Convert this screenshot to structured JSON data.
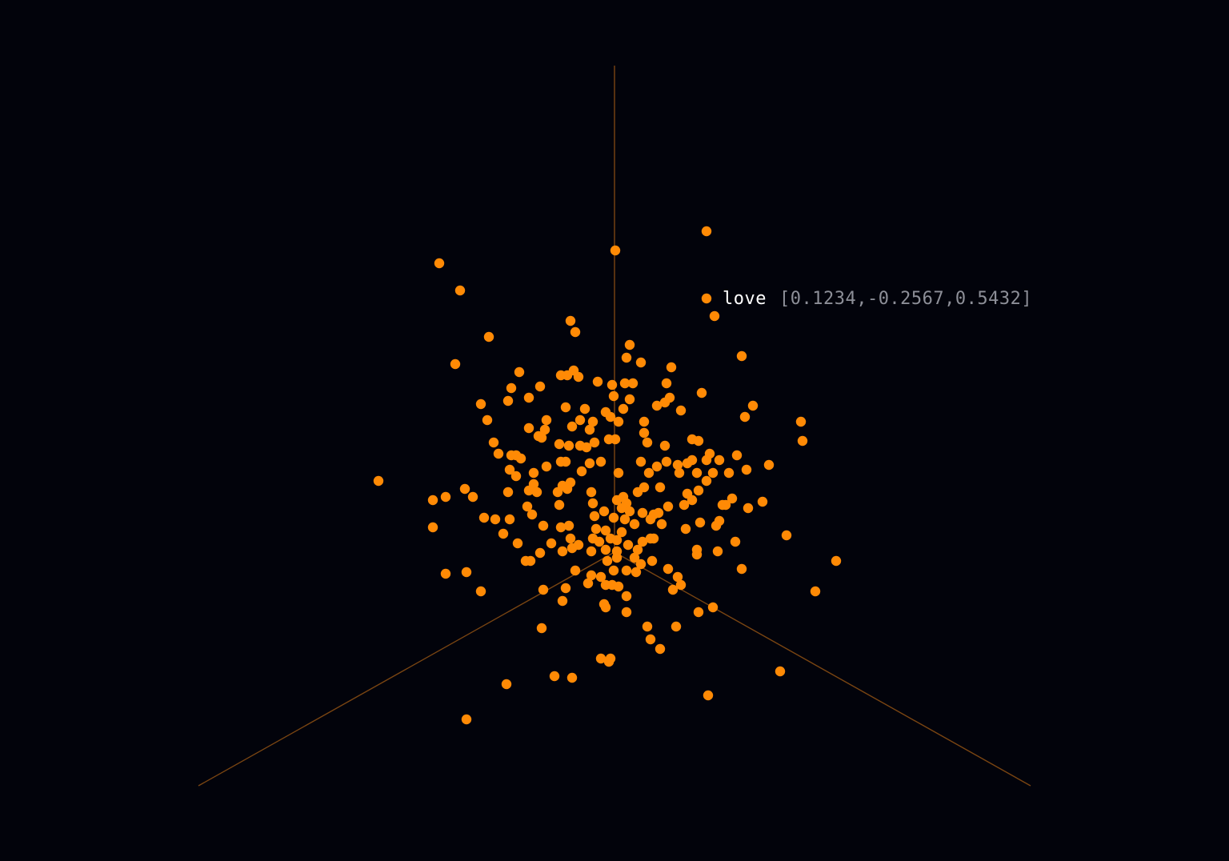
{
  "view": {
    "background": "#02030b",
    "point_color": "#ff8a05",
    "axis_color": "#7a4512"
  },
  "hover": {
    "word": "love",
    "vector": "[0.1234,-0.2567,0.5432]"
  },
  "chart_data": {
    "type": "scatter",
    "title": "",
    "axes": 3,
    "grid": false,
    "highlight": {
      "word": "love",
      "vector": [
        0.1234,
        -0.2567,
        0.5432
      ]
    }
  }
}
